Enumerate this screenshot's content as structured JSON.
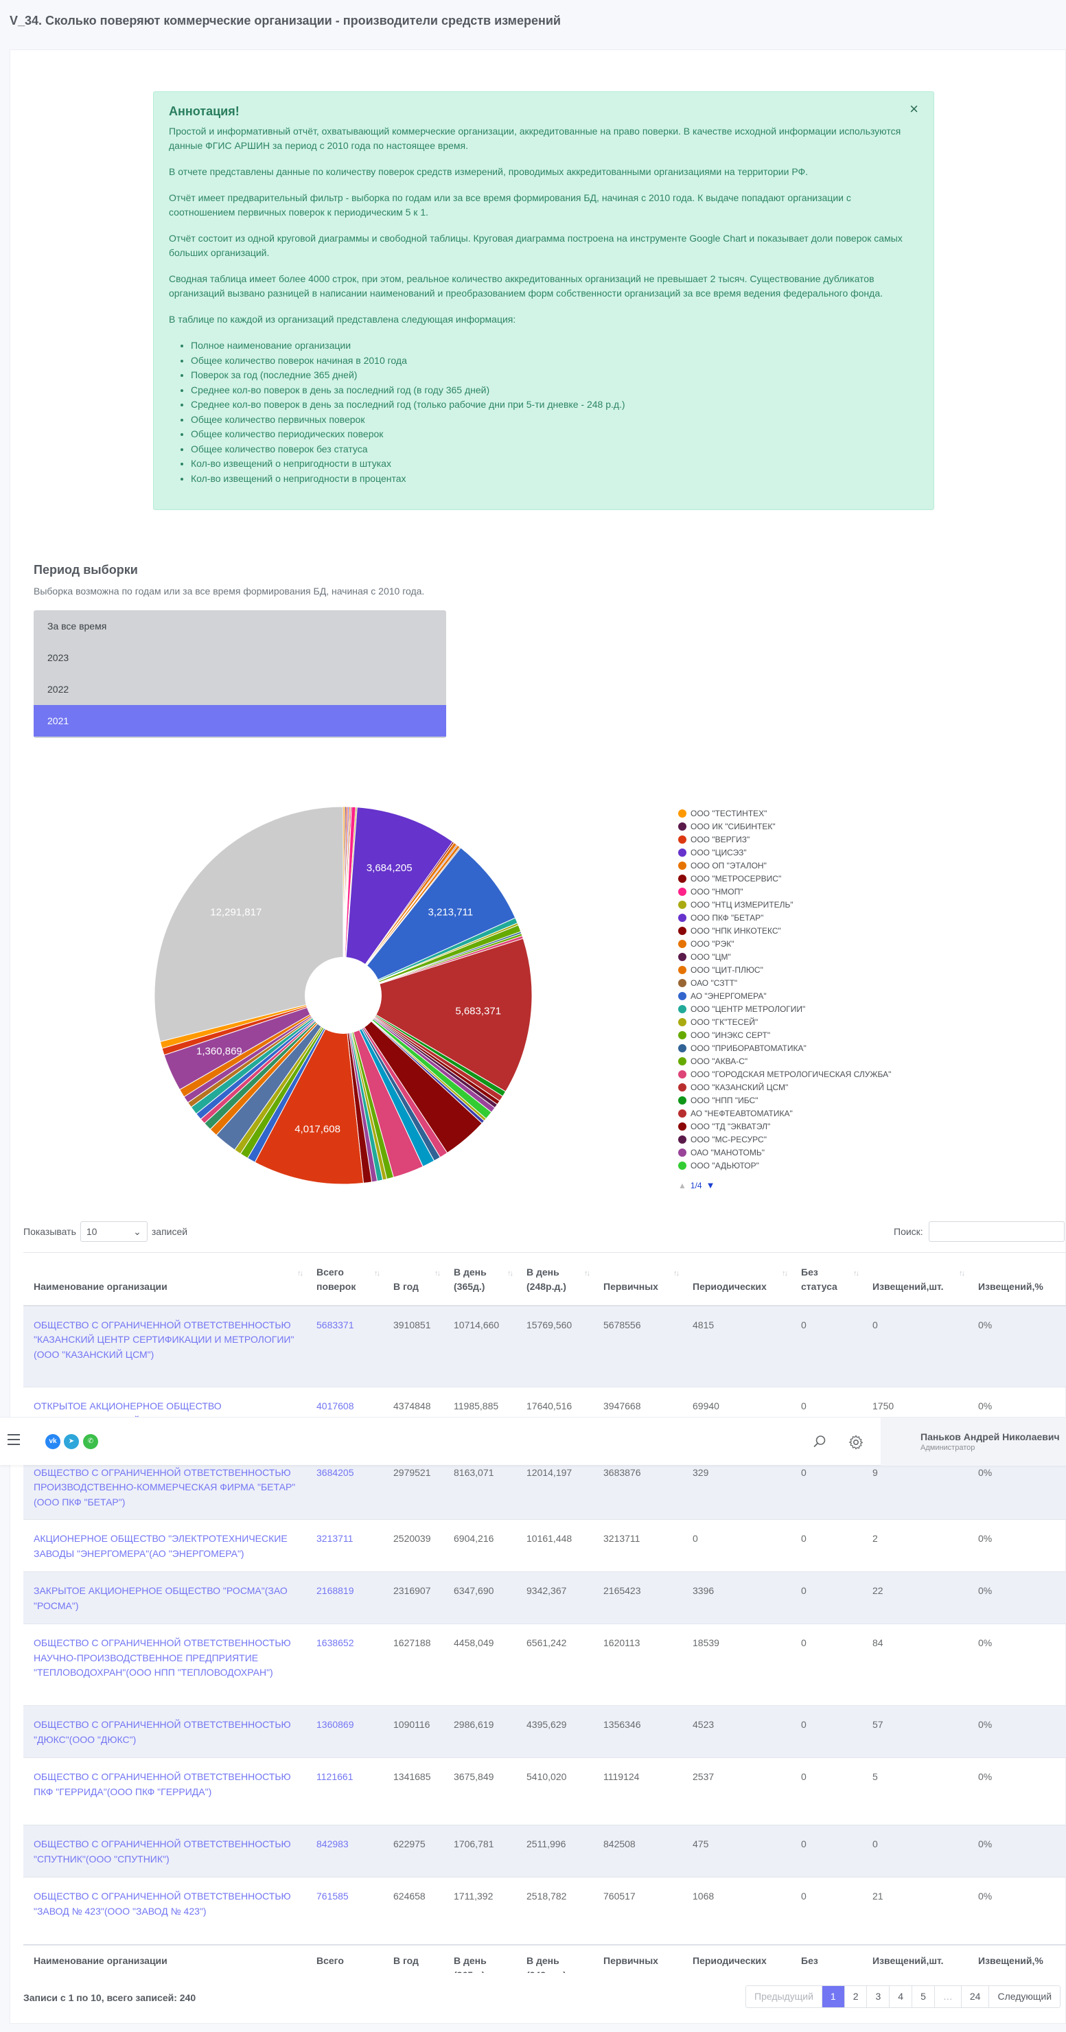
{
  "page": {
    "title": "V_34. Сколько поверяют коммерческие организации - производители средств измерений"
  },
  "annotation": {
    "heading": "Аннотация!",
    "paragraphs": [
      "Простой и информативный отчёт, охватывающий коммерческие организации, аккредитованные на право поверки. В качестве исходной информации используются данные ФГИС АРШИН за период с 2010 года по настоящее время.",
      "В отчете представлены данные по количеству поверок средств измерений, проводимых аккредитованными организациями на территории РФ.",
      "Отчёт имеет предварительный фильтр - выборка по годам или за все время формирования БД, начиная с 2010 года. К выдаче попадают организации с соотношением первичных поверок к периодическим 5 к 1.",
      "Отчёт состоит из одной круговой диаграммы и свободной таблицы. Круговая диаграмма построена на инструменте Google Chart и показывает доли поверок самых больших организаций.",
      "Сводная таблица имеет более 4000 строк, при этом, реальное количество аккредитованных организаций не превышает 2 тысяч. Существование дубликатов организаций вызвано разницей в написании наименований и преобразованием форм собственности организаций за все время ведения федерального фонда.",
      "В таблице по каждой из организаций представлена следующая информация:"
    ],
    "items": [
      "Полное наименование организации",
      "Общее количество поверок начиная в 2010 года",
      "Поверок за год (последние 365 дней)",
      "Среднее кол-во поверок в день за последний год (в году 365 дней)",
      "Среднее кол-во поверок в день за последний год (только рабочие дни при 5-ти дневке - 248 р.д.)",
      "Общее количество первичных поверок",
      "Общее количество периодических поверок",
      "Общее количество поверок без статуса",
      "Кол-во извещений о непригодности в штуках",
      "Кол-во извещений о непригодности в процентах"
    ],
    "close": "×"
  },
  "period": {
    "title": "Период выборки",
    "description": "Выборка возможна по годам или за все время формирования БД, начиная с 2010 года.",
    "options": [
      "За все время",
      "2023",
      "2022",
      "2021"
    ],
    "selected": "2021"
  },
  "chart_data": {
    "type": "pie",
    "donut": true,
    "slices": [
      {
        "label": "ООО \"ТЕСТИНТЕХ\"",
        "value": 60000,
        "color": "#ff9900"
      },
      {
        "label": "ООО ИК \"СИБИНТЕК\"",
        "value": 50000,
        "color": "#5a1a4a"
      },
      {
        "label": "ООО \"ВЕРГИЗ\"",
        "value": 55000,
        "color": "#dc3912"
      },
      {
        "label": "ООО \"ЦИСЭЗ\"",
        "value": 45000,
        "color": "#6633cc"
      },
      {
        "label": "ООО ОП \"ЭТАЛОН\"",
        "value": 50000,
        "color": "#e67300"
      },
      {
        "label": "ООО \"МЕТРОСЕРВИС\"",
        "value": 40000,
        "color": "#8b0707"
      },
      {
        "label": "ООО \"НМОП\"",
        "value": 150000,
        "color": "#ff2288"
      },
      {
        "label": "ООО \"НТЦ ИЗМЕРИТЕЛЬ\"",
        "value": 50000,
        "color": "#aaaa11"
      },
      {
        "label": "ООО ПКФ \"БЕТАР\"",
        "value": 3684205,
        "color": "#6633cc"
      },
      {
        "label": "ООО \"НПК ИНКОТЕКС\"",
        "value": 60000,
        "color": "#8b0707"
      },
      {
        "label": "ООО \"РЭК\"",
        "value": 120000,
        "color": "#e67300"
      },
      {
        "label": "ООО \"ЦМ\"",
        "value": 40000,
        "color": "#5a1a4a"
      },
      {
        "label": "ООО \"ЦИТ-ПЛЮС\"",
        "value": 100000,
        "color": "#e67300"
      },
      {
        "label": "ОАО \"СЗТТ\"",
        "value": 40000,
        "color": "#996633"
      },
      {
        "label": "АО \"ЭНЕРГОМЕРА\"",
        "value": 3213711,
        "color": "#3366cc"
      },
      {
        "label": "ООО \"ЦЕНТР МЕТРОЛОГИИ\"",
        "value": 200000,
        "color": "#22aa99"
      },
      {
        "label": "ООО \"ГК\"ТЕСЕЙ\"",
        "value": 80000,
        "color": "#aaaa11"
      },
      {
        "label": "ООО \"ИНЭКС СЕРТ\"",
        "value": 250000,
        "color": "#66aa00"
      },
      {
        "label": "ООО \"ПРИБОРАВТОМАТИКА\"",
        "value": 70000,
        "color": "#316395"
      },
      {
        "label": "ООО \"АКВА-С\"",
        "value": 90000,
        "color": "#66aa00"
      },
      {
        "label": "ООО \"ГОРОДСКАЯ МЕТРОЛОГИЧЕСКАЯ СЛУЖБА\"",
        "value": 100000,
        "color": "#dd4477"
      },
      {
        "label": "ООО \"КАЗАНСКИЙ ЦСМ\"",
        "value": 5683371,
        "color": "#b82e2e"
      },
      {
        "label": "ООО \"НПП \"ИБС\"",
        "value": 200000,
        "color": "#109618"
      },
      {
        "label": "АО \"НЕФТЕАВТОМАТИКА\"",
        "value": 200000,
        "color": "#b82e2e"
      },
      {
        "label": "ООО \"ТД \"ЭКВАТЭЛ\"",
        "value": 150000,
        "color": "#8b0707"
      },
      {
        "label": "ООО \"МС-РЕСУРС\"",
        "value": 150000,
        "color": "#5a1a4a"
      },
      {
        "label": "ОАО \"МАНОТОМЬ\"",
        "value": 200000,
        "color": "#994499"
      },
      {
        "label": "ООО \"АДЬЮТОР\"",
        "value": 300000,
        "color": "#33cc33"
      },
      {
        "label": "",
        "value": 100000,
        "color": "#aaaa11"
      },
      {
        "label": "",
        "value": 120000,
        "color": "#3b3eac"
      },
      {
        "label": "",
        "value": 1638652,
        "color": "#8b0707"
      },
      {
        "label": "",
        "value": 300000,
        "color": "#dd4477"
      },
      {
        "label": "",
        "value": 250000,
        "color": "#316395"
      },
      {
        "label": "",
        "value": 450000,
        "color": "#0099c6"
      },
      {
        "label": "",
        "value": 1121661,
        "color": "#dd4477"
      },
      {
        "label": "",
        "value": 250000,
        "color": "#66aa00"
      },
      {
        "label": "",
        "value": 150000,
        "color": "#aaaa11"
      },
      {
        "label": "",
        "value": 200000,
        "color": "#22aa99"
      },
      {
        "label": "",
        "value": 200000,
        "color": "#994499"
      },
      {
        "label": "",
        "value": 300000,
        "color": "#8b0707"
      },
      {
        "label": "",
        "value": 4017608,
        "color": "#dc3912"
      },
      {
        "label": "",
        "value": 300000,
        "color": "#3366cc"
      },
      {
        "label": "",
        "value": 300000,
        "color": "#66aa00"
      },
      {
        "label": "",
        "value": 250000,
        "color": "#aaaa11"
      },
      {
        "label": "",
        "value": 842983,
        "color": "#5574a6"
      },
      {
        "label": "",
        "value": 300000,
        "color": "#e67300"
      },
      {
        "label": "",
        "value": 300000,
        "color": "#329262"
      },
      {
        "label": "",
        "value": 200000,
        "color": "#dd4477"
      },
      {
        "label": "",
        "value": 250000,
        "color": "#3366cc"
      },
      {
        "label": "",
        "value": 300000,
        "color": "#22aa99"
      },
      {
        "label": "",
        "value": 200000,
        "color": "#b77322"
      },
      {
        "label": "",
        "value": 250000,
        "color": "#994499"
      },
      {
        "label": "",
        "value": 300000,
        "color": "#e67300"
      },
      {
        "label": "",
        "value": 1360869,
        "color": "#994499"
      },
      {
        "label": "",
        "value": 250000,
        "color": "#dc3912"
      },
      {
        "label": "",
        "value": 250000,
        "color": "#ff9900"
      },
      {
        "label": "",
        "value": 12291817,
        "color": "#cccccc"
      }
    ],
    "data_labels": [
      "12,291,817",
      "3,684,205",
      "3,213,711",
      "5,683,371",
      "4,017,608",
      "1,360,869"
    ],
    "legend_position": "right",
    "legend_page": "1/4"
  },
  "table": {
    "length_label_before": "Показывать",
    "length_value": "10",
    "length_label_after": "записей",
    "search_label": "Поиск:",
    "columns": [
      [
        "Наименование организации"
      ],
      [
        "Всего",
        "поверок"
      ],
      [
        "В год"
      ],
      [
        "В день",
        "(365д.)"
      ],
      [
        "В день",
        "(248р.д.)"
      ],
      [
        "Первичных"
      ],
      [
        "Периодических"
      ],
      [
        "Без",
        "статуса"
      ],
      [
        "Извещений,шт."
      ],
      [
        "Извещений,%"
      ]
    ],
    "rows": [
      [
        "ОБЩЕСТВО С ОГРАНИЧЕННОЙ ОТВЕТСТВЕННОСТЬЮ \"КАЗАНСКИЙ ЦЕНТР СЕРТИФИКАЦИИ И МЕТРОЛОГИИ\"(ООО \"КАЗАНСКИЙ ЦСМ\")",
        "5683371",
        "3910851",
        "10714,660",
        "15769,560",
        "5678556",
        "4815",
        "0",
        "0",
        "0%"
      ],
      [
        "ОТКРЫТОЕ АКЦИОНЕРНОЕ ОБЩЕСТВО \"ЭЛЕКТРОНИКАСТРОЙСЕРВИС\"(ОАО \"ЭЛЕКТРОНИКАСТРОЙСЕРВИС\")",
        "4017608",
        "4374848",
        "11985,885",
        "17640,516",
        "3947668",
        "69940",
        "0",
        "1750",
        "0%"
      ],
      [
        "ОБЩЕСТВО С ОГРАНИЧЕННОЙ ОТВЕТСТВЕННОСТЬЮ ПРОИЗВОДСТВЕННО-КОММЕРЧЕСКАЯ ФИРМА \"БЕТАР\"(ООО ПКФ \"БЕТАР\")",
        "3684205",
        "2979521",
        "8163,071",
        "12014,197",
        "3683876",
        "329",
        "0",
        "9",
        "0%"
      ],
      [
        "АКЦИОНЕРНОЕ ОБЩЕСТВО \"ЭЛЕКТРОТЕХНИЧЕСКИЕ ЗАВОДЫ \"ЭНЕРГОМЕРА\"(АО \"ЭНЕРГОМЕРА\")",
        "3213711",
        "2520039",
        "6904,216",
        "10161,448",
        "3213711",
        "0",
        "0",
        "2",
        "0%"
      ],
      [
        "ЗАКРЫТОЕ АКЦИОНЕРНОЕ ОБЩЕСТВО \"РОСМА\"(ЗАО \"РОСМА\")",
        "2168819",
        "2316907",
        "6347,690",
        "9342,367",
        "2165423",
        "3396",
        "0",
        "22",
        "0%"
      ],
      [
        "ОБЩЕСТВО С ОГРАНИЧЕННОЙ ОТВЕТСТВЕННОСТЬЮ НАУЧНО-ПРОИЗВОДСТВЕННОЕ ПРЕДПРИЯТИЕ \"ТЕПЛОВОДОХРАН\"(ООО НПП \"ТЕПЛОВОДОХРАН\")",
        "1638652",
        "1627188",
        "4458,049",
        "6561,242",
        "1620113",
        "18539",
        "0",
        "84",
        "0%"
      ],
      [
        "ОБЩЕСТВО С ОГРАНИЧЕННОЙ ОТВЕТСТВЕННОСТЬЮ \"ДЮКС\"(ООО \"ДЮКС\")",
        "1360869",
        "1090116",
        "2986,619",
        "4395,629",
        "1356346",
        "4523",
        "0",
        "57",
        "0%"
      ],
      [
        "ОБЩЕСТВО С ОГРАНИЧЕННОЙ ОТВЕТСТВЕННОСТЬЮ ПКФ \"ГЕРРИДА\"(ООО ПКФ \"ГЕРРИДА\")",
        "1121661",
        "1341685",
        "3675,849",
        "5410,020",
        "1119124",
        "2537",
        "0",
        "5",
        "0%"
      ],
      [
        "ОБЩЕСТВО С ОГРАНИЧЕННОЙ ОТВЕТСТВЕННОСТЬЮ \"СПУТНИК\"(ООО \"СПУТНИК\")",
        "842983",
        "622975",
        "1706,781",
        "2511,996",
        "842508",
        "475",
        "0",
        "0",
        "0%"
      ],
      [
        "ОБЩЕСТВО С ОГРАНИЧЕННОЙ ОТВЕТСТВЕННОСТЬЮ \"ЗАВОД № 423\"(ООО \"ЗАВОД № 423\")",
        "761585",
        "624658",
        "1711,392",
        "2518,782",
        "760517",
        "1068",
        "0",
        "21",
        "0%"
      ]
    ],
    "info": "Записи с 1 по 10, всего записей: 240",
    "pagination": [
      "Предыдущий",
      "1",
      "2",
      "3",
      "4",
      "5",
      "…",
      "24",
      "Следующий"
    ],
    "current_page": "1"
  },
  "topbar": {
    "social": [
      "VK",
      "Telegram",
      "WhatsApp"
    ],
    "user_name": "Паньков Андрей Николаевич",
    "user_role": "Администратор"
  }
}
